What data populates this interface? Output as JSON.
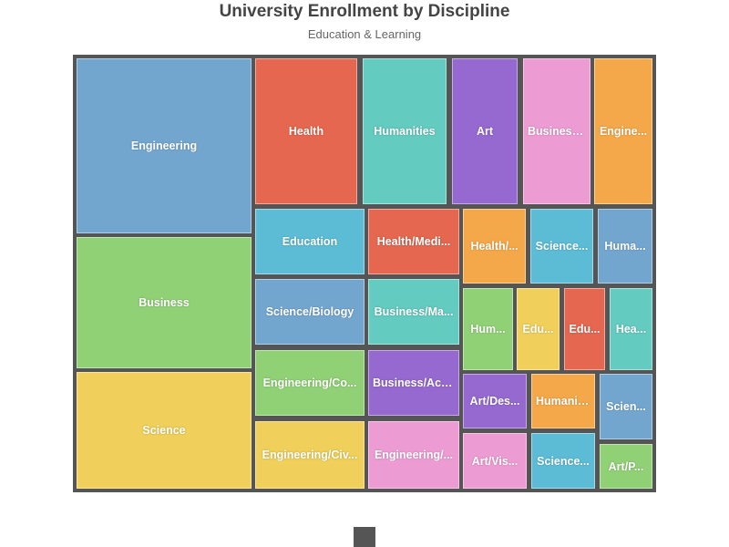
{
  "title": "University Enrollment by Discipline",
  "subtitle": "Education & Learning",
  "chart_data": {
    "type": "treemap",
    "title": "University Enrollment by Discipline",
    "subtitle": "Education & Learning",
    "background": "#555555",
    "items": [
      {
        "label": "Engineering",
        "value": 128,
        "color": "#73a6cf"
      },
      {
        "label": "Business",
        "value": 95,
        "color": "#91d176"
      },
      {
        "label": "Science",
        "value": 85,
        "color": "#f0d05a"
      },
      {
        "label": "Health",
        "value": 46,
        "color": "#e5674f"
      },
      {
        "label": "Humanities",
        "value": 42,
        "color": "#64cbc1"
      },
      {
        "label": "Art",
        "value": 32,
        "color": "#9569cf"
      },
      {
        "label": "Business...",
        "value": 32,
        "color": "#ed9cd3"
      },
      {
        "label": "Engine...",
        "value": 26,
        "color": "#f5a849"
      },
      {
        "label": "Education",
        "value": 16,
        "color": "#5cbcd6"
      },
      {
        "label": "Health/Medi...",
        "value": 16,
        "color": "#e5674f"
      },
      {
        "label": "Health/...",
        "value": 12,
        "color": "#f5a849"
      },
      {
        "label": "Science...",
        "value": 12,
        "color": "#5cbcd6"
      },
      {
        "label": "Huma...",
        "value": 10,
        "color": "#73a6cf"
      },
      {
        "label": "Science/Biology",
        "value": 16,
        "color": "#73a6cf"
      },
      {
        "label": "Business/Ma...",
        "value": 16,
        "color": "#64cbc1"
      },
      {
        "label": "Hum...",
        "value": 8,
        "color": "#91d176"
      },
      {
        "label": "Edu...",
        "value": 7,
        "color": "#f0d05a"
      },
      {
        "label": "Edu...",
        "value": 7,
        "color": "#e5674f"
      },
      {
        "label": "Hea...",
        "value": 7,
        "color": "#64cbc1"
      },
      {
        "label": "Engineering/Co...",
        "value": 16,
        "color": "#91d176"
      },
      {
        "label": "Business/Acc...",
        "value": 15,
        "color": "#9569cf"
      },
      {
        "label": "Art/Des...",
        "value": 8,
        "color": "#9569cf"
      },
      {
        "label": "Humanit...",
        "value": 8,
        "color": "#f5a849"
      },
      {
        "label": "Scien...",
        "value": 7,
        "color": "#73a6cf"
      },
      {
        "label": "Engineering/Civ...",
        "value": 16,
        "color": "#f0d05a"
      },
      {
        "label": "Engineering/...",
        "value": 15,
        "color": "#ed9cd3"
      },
      {
        "label": "Art/Vis...",
        "value": 8,
        "color": "#ed9cd3"
      },
      {
        "label": "Science...",
        "value": 8,
        "color": "#5cbcd6"
      },
      {
        "label": "Art/P...",
        "value": 5,
        "color": "#91d176"
      }
    ]
  }
}
